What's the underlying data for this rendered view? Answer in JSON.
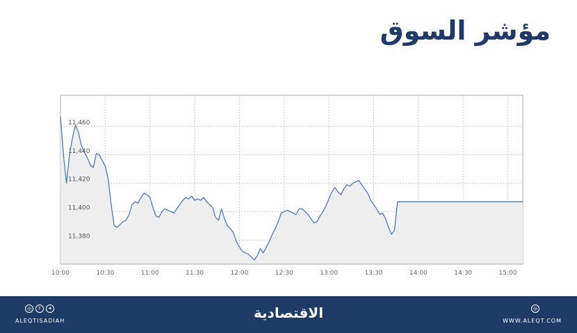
{
  "header": {
    "title": "مؤشر السوق"
  },
  "chart_data": {
    "type": "area",
    "title": "مؤشر السوق",
    "xlabel": "",
    "ylabel": "",
    "x_ticks": [
      "10:00",
      "10:30",
      "11:00",
      "11:30",
      "12:00",
      "12:30",
      "13:00",
      "13:30",
      "14:00",
      "14:30",
      "15:00"
    ],
    "y_ticks": [
      "11,460",
      "11,440",
      "11,420",
      "11,400",
      "11,380"
    ],
    "ylim": [
      11363,
      11482
    ],
    "xlim": [
      "10:00",
      "15:10"
    ],
    "grid": true,
    "colors": {
      "line": "#4f78b8",
      "fill": "#eeeeee",
      "grid": "#c8c8c8",
      "axis": "#aaaaaa"
    },
    "series": [
      {
        "x": [
          "10:00",
          "10:02",
          "10:04",
          "10:06",
          "10:08",
          "10:10",
          "10:12",
          "10:14",
          "10:16",
          "10:18",
          "10:20",
          "10:22",
          "10:24",
          "10:26",
          "10:28",
          "10:30",
          "10:32",
          "10:34",
          "10:36",
          "10:38",
          "10:40",
          "10:42",
          "10:44",
          "10:46",
          "10:48",
          "10:50",
          "10:52",
          "10:54",
          "10:56",
          "10:58",
          "11:00",
          "11:02",
          "11:04",
          "11:06",
          "11:08",
          "11:10",
          "11:12",
          "11:14",
          "11:16",
          "11:18",
          "11:20",
          "11:22",
          "11:24",
          "11:26",
          "11:28",
          "11:30",
          "11:32",
          "11:34",
          "11:36",
          "11:38",
          "11:40",
          "11:42",
          "11:44",
          "11:46",
          "11:48",
          "11:50",
          "11:52",
          "11:54",
          "11:56",
          "11:58",
          "12:00",
          "12:02",
          "12:04",
          "12:06",
          "12:08",
          "12:10",
          "12:12",
          "12:14",
          "12:16",
          "12:18",
          "12:20",
          "12:22",
          "12:24",
          "12:26",
          "12:28",
          "12:30",
          "12:32",
          "12:34",
          "12:36",
          "12:38",
          "12:40",
          "12:42",
          "12:44",
          "12:46",
          "12:48",
          "12:50",
          "12:52",
          "12:54",
          "12:56",
          "12:58",
          "13:00",
          "13:02",
          "13:04",
          "13:06",
          "13:08",
          "13:10",
          "13:12",
          "13:14",
          "13:16",
          "13:18",
          "13:20",
          "13:22",
          "13:24",
          "13:26",
          "13:28",
          "13:30",
          "13:32",
          "13:34",
          "13:36",
          "13:38",
          "13:40",
          "13:42",
          "13:44",
          "13:46",
          "13:48",
          "13:50",
          "13:52",
          "13:54",
          "13:56",
          "13:58",
          "14:00",
          "14:02",
          "14:04",
          "14:06",
          "14:08",
          "14:10",
          "14:12",
          "14:14",
          "14:16",
          "14:18",
          "14:20",
          "14:22",
          "14:24",
          "14:26",
          "14:28",
          "14:30",
          "14:32",
          "14:34",
          "14:36",
          "14:38",
          "14:40",
          "14:42",
          "14:44",
          "14:46",
          "14:48",
          "14:50",
          "14:52",
          "14:54",
          "14:56",
          "14:58",
          "15:00",
          "15:02",
          "15:04",
          "15:06",
          "15:08",
          "15:10"
        ],
        "values": [
          11467,
          11440,
          11420,
          11440,
          11452,
          11461,
          11456,
          11447,
          11442,
          11438,
          11433,
          11431,
          11441,
          11440,
          11436,
          11432,
          11423,
          11405,
          11390,
          11389,
          11391,
          11393,
          11394,
          11398,
          11405,
          11407,
          11406,
          11410,
          11413,
          11412,
          11410,
          11403,
          11397,
          11396,
          11400,
          11402,
          11401,
          11400,
          11399,
          11402,
          11405,
          11408,
          11410,
          11409,
          11411,
          11408,
          11409,
          11408,
          11410,
          11407,
          11405,
          11403,
          11396,
          11394,
          11402,
          11395,
          11390,
          11388,
          11385,
          11379,
          11375,
          11372,
          11371,
          11370,
          11368,
          11366,
          11369,
          11374,
          11371,
          11375,
          11379,
          11384,
          11388,
          11393,
          11399,
          11400,
          11401,
          11400,
          11399,
          11398,
          11402,
          11402,
          11400,
          11398,
          11395,
          11392,
          11393,
          11397,
          11400,
          11404,
          11409,
          11414,
          11417,
          11414,
          11412,
          11416,
          11419,
          11418,
          11420,
          11421,
          11422,
          11419,
          11416,
          11413,
          11408,
          11405,
          11402,
          11398,
          11399,
          11395,
          11389,
          11384,
          11387,
          11407,
          11407,
          11407,
          11407,
          11407,
          11407,
          11407,
          11407,
          11407,
          11407,
          11407,
          11407,
          11407,
          11407,
          11407,
          11407,
          11407,
          11407,
          11407,
          11407,
          11407,
          11407,
          11407,
          11407,
          11407,
          11407,
          11407,
          11407,
          11407,
          11407,
          11407,
          11407,
          11407,
          11407,
          11407,
          11407,
          11407,
          11407,
          11407,
          11407,
          11407,
          11407,
          11407
        ]
      }
    ]
  },
  "footer": {
    "handle": "ALEQTISADIAH",
    "brand": "الاقتصادية",
    "url": "WWW.ALEQT.COM",
    "social_icons": [
      "instagram-icon",
      "facebook-icon",
      "twitter-icon"
    ]
  }
}
